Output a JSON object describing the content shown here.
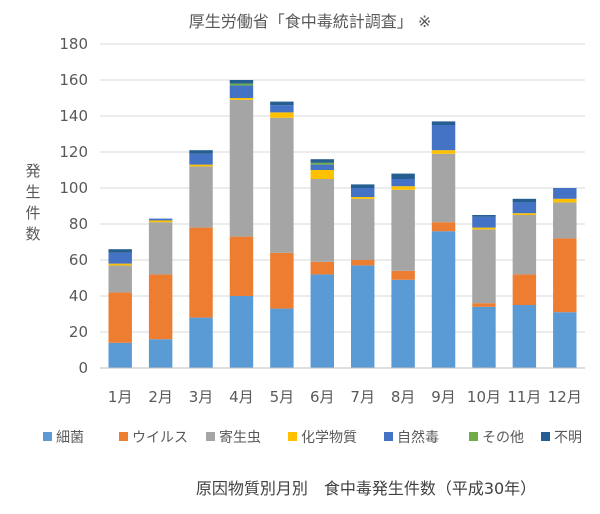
{
  "chart_data": {
    "type": "bar",
    "stacked": true,
    "title": "厚生労働省「食中毒統計調査」 ※",
    "ylabel": "発生件数",
    "xlabel": "",
    "caption": "原因物質別月別　食中毒発生件数（平成30年）",
    "ylim": [
      0,
      180
    ],
    "yticks": [
      0,
      20,
      40,
      60,
      80,
      100,
      120,
      140,
      160,
      180
    ],
    "grid": true,
    "legend_position": "bottom",
    "categories": [
      "1月",
      "2月",
      "3月",
      "4月",
      "5月",
      "6月",
      "7月",
      "8月",
      "9月",
      "10月",
      "11月",
      "12月"
    ],
    "series": [
      {
        "name": "細菌",
        "color": "#5b9bd5",
        "values": [
          14,
          16,
          28,
          40,
          33,
          52,
          57,
          49,
          76,
          34,
          35,
          31
        ]
      },
      {
        "name": "ウイルス",
        "color": "#ed7d31",
        "values": [
          28,
          36,
          50,
          33,
          31,
          7,
          3,
          5,
          5,
          2,
          17,
          41
        ]
      },
      {
        "name": "寄生虫",
        "color": "#a5a5a5",
        "values": [
          15,
          29,
          34,
          76,
          75,
          46,
          34,
          45,
          38,
          41,
          33,
          20
        ]
      },
      {
        "name": "化学物質",
        "color": "#ffc000",
        "values": [
          1,
          1,
          1,
          1,
          3,
          5,
          1,
          2,
          2,
          1,
          1,
          2
        ]
      },
      {
        "name": "自然毒",
        "color": "#4472c4",
        "values": [
          6,
          1,
          6,
          7,
          4,
          3,
          5,
          4,
          14,
          6,
          6,
          6
        ]
      },
      {
        "name": "その他",
        "color": "#70ad47",
        "values": [
          0,
          0,
          0,
          1,
          0,
          1,
          0,
          0,
          0,
          0,
          0,
          0
        ]
      },
      {
        "name": "不明",
        "color": "#255e91",
        "values": [
          2,
          0,
          2,
          2,
          2,
          2,
          2,
          3,
          2,
          1,
          2,
          0
        ]
      }
    ]
  }
}
